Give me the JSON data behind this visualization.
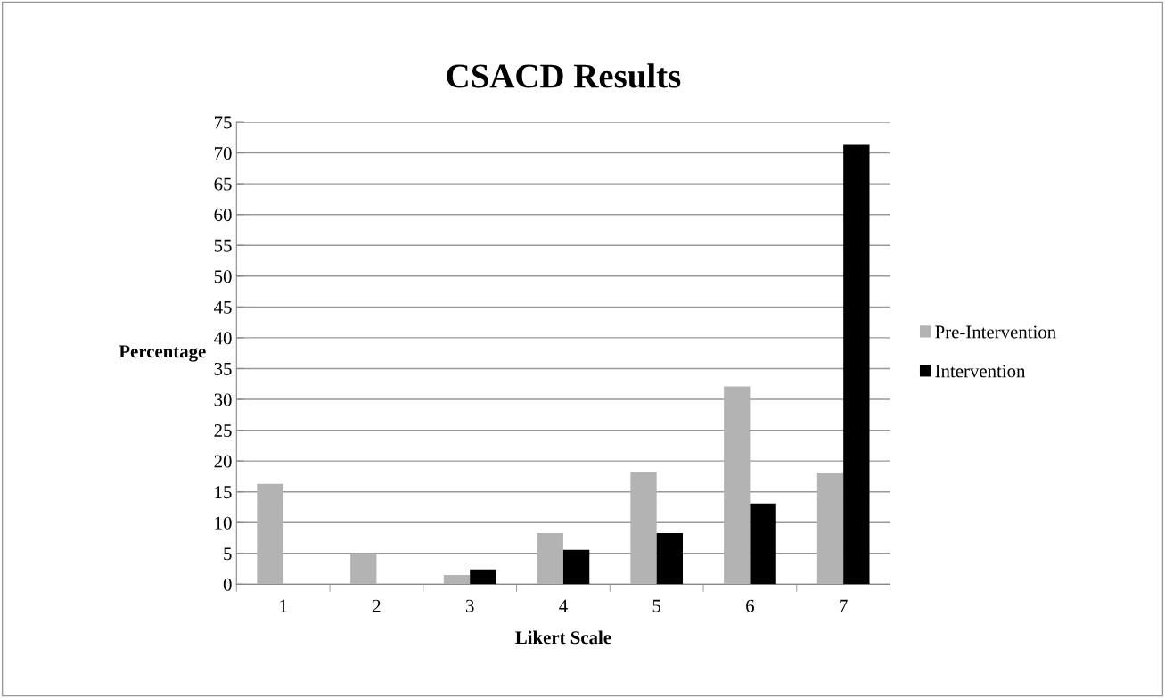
{
  "chart_data": {
    "type": "bar",
    "title": "CSACD Results",
    "xlabel": "Likert Scale",
    "ylabel": "Percentage",
    "categories": [
      "1",
      "2",
      "3",
      "4",
      "5",
      "6",
      "7"
    ],
    "series": [
      {
        "name": "Pre-Intervention",
        "color": "#b3b3b3",
        "values": [
          16.3,
          5.0,
          1.5,
          8.3,
          18.2,
          32.1,
          18.0
        ]
      },
      {
        "name": "Intervention",
        "color": "#000000",
        "values": [
          0,
          0,
          2.4,
          5.6,
          8.3,
          13.1,
          71.3
        ]
      }
    ],
    "ylim": [
      0,
      75
    ],
    "yticks": [
      0,
      5,
      10,
      15,
      20,
      25,
      30,
      35,
      40,
      45,
      50,
      55,
      60,
      65,
      70,
      75
    ],
    "grid": "y",
    "legend": "right"
  }
}
